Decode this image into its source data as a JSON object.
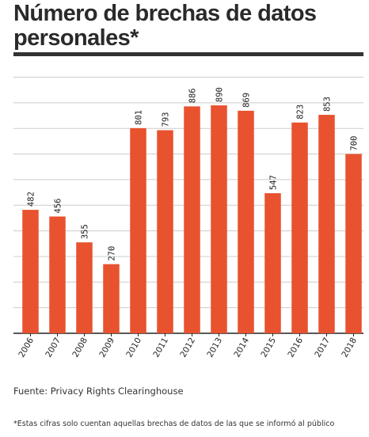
{
  "title": "Número de brechas de datos personales*",
  "source": "Fuente: Privacy Rights Clearinghouse",
  "footnote": "*Estas cifras solo cuentan aquellas brechas de datos de las que se informó al público",
  "colors": {
    "bar": "#e8522f",
    "grid": "#cccccc",
    "axis": "#222222",
    "text": "#222222"
  },
  "chart_data": {
    "type": "bar",
    "title": "Número de brechas de datos personales*",
    "xlabel": "",
    "ylabel": "",
    "categories": [
      "2006",
      "2007",
      "2008",
      "2009",
      "2010",
      "2011",
      "2012",
      "2013",
      "2014",
      "2015",
      "2016",
      "2017",
      "2018"
    ],
    "values": [
      482,
      456,
      355,
      270,
      801,
      793,
      886,
      890,
      869,
      547,
      823,
      853,
      700
    ],
    "ylim": [
      0,
      1000
    ],
    "grid": true,
    "data_labels": true
  }
}
